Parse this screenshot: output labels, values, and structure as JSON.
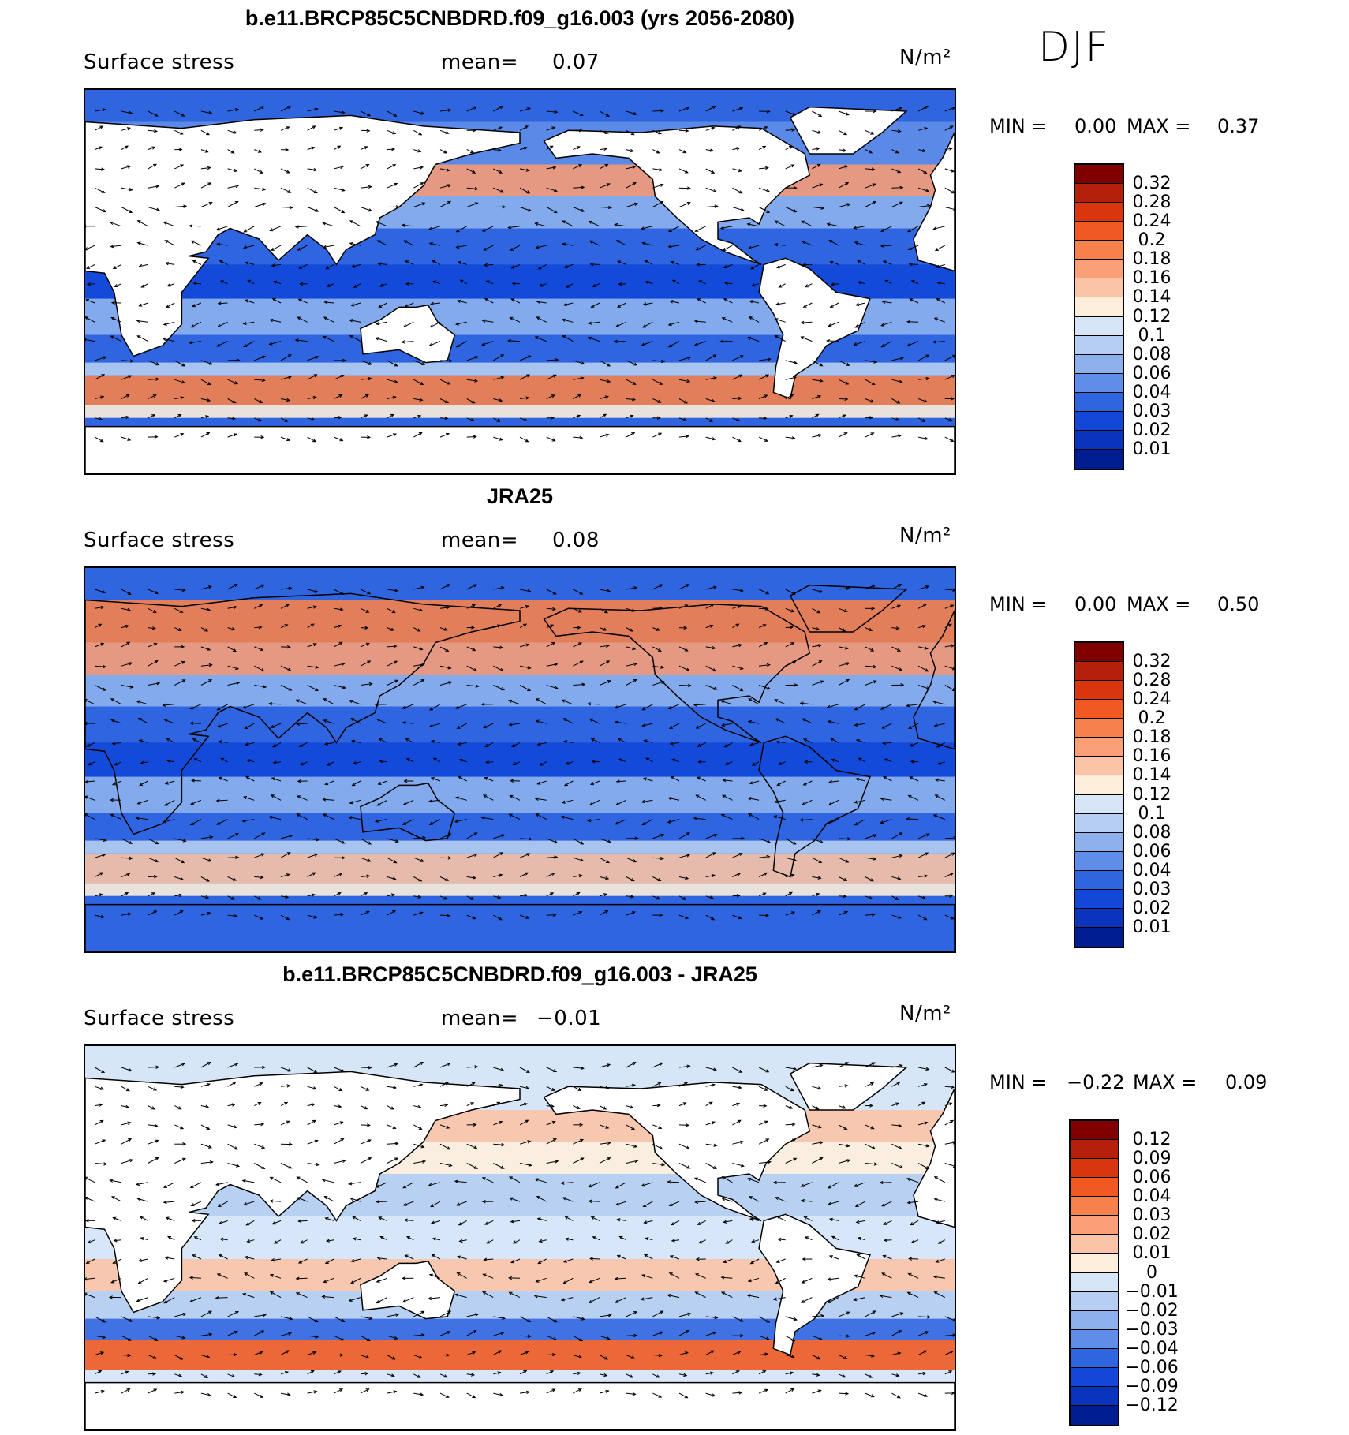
{
  "season": "DJF",
  "panels": [
    {
      "title": "b.e11.BRCP85C5CNBDRD.f09_g16.003 (yrs 2056-2080)",
      "left_label": "Surface stress",
      "mean_label": "mean=",
      "mean_value": "0.07",
      "units": "N/m²",
      "min_label": "MIN =",
      "min_value": "0.00",
      "max_label": "MAX =",
      "max_value": "0.37",
      "colorbar_labels": [
        "0.32",
        "0.28",
        "0.24",
        "0.2",
        "0.18",
        "0.16",
        "0.14",
        "0.12",
        "0.1",
        "0.08",
        "0.06",
        "0.04",
        "0.03",
        "0.02",
        "0.01"
      ],
      "colors": [
        "#800000",
        "#b5200c",
        "#d9350f",
        "#f05a22",
        "#f7814d",
        "#fa9f78",
        "#fbc4a6",
        "#fdeedc",
        "#d7e6f7",
        "#b5cef2",
        "#8db1ed",
        "#5f8de8",
        "#3065e0",
        "#1247d8",
        "#0a34be",
        "#001d8f"
      ]
    },
    {
      "title": "JRA25",
      "left_label": "Surface stress",
      "mean_label": "mean=",
      "mean_value": "0.08",
      "units": "N/m²",
      "min_label": "MIN =",
      "min_value": "0.00",
      "max_label": "MAX =",
      "max_value": "0.50",
      "colorbar_labels": [
        "0.32",
        "0.28",
        "0.24",
        "0.2",
        "0.18",
        "0.16",
        "0.14",
        "0.12",
        "0.1",
        "0.08",
        "0.06",
        "0.04",
        "0.03",
        "0.02",
        "0.01"
      ],
      "colors": [
        "#800000",
        "#b5200c",
        "#d9350f",
        "#f05a22",
        "#f7814d",
        "#fa9f78",
        "#fbc4a6",
        "#fdeedc",
        "#d7e6f7",
        "#b5cef2",
        "#8db1ed",
        "#5f8de8",
        "#3065e0",
        "#1247d8",
        "#0a34be",
        "#001d8f"
      ]
    },
    {
      "title": "b.e11.BRCP85C5CNBDRD.f09_g16.003 - JRA25",
      "left_label": "Surface stress",
      "mean_label": "mean=",
      "mean_value": "−0.01",
      "units": "N/m²",
      "min_label": "MIN =",
      "min_value": "−0.22",
      "max_label": "MAX =",
      "max_value": "0.09",
      "colorbar_labels": [
        "0.12",
        "0.09",
        "0.06",
        "0.04",
        "0.03",
        "0.02",
        "0.01",
        "0",
        "−0.01",
        "−0.02",
        "−0.03",
        "−0.04",
        "−0.06",
        "−0.09",
        "−0.12"
      ],
      "colors": [
        "#800000",
        "#b5200c",
        "#d9350f",
        "#f05a22",
        "#f7814d",
        "#fa9f78",
        "#fbc4a6",
        "#fdeedc",
        "#d7e6f7",
        "#b5cef2",
        "#8db1ed",
        "#5f8de8",
        "#3065e0",
        "#1247d8",
        "#0a34be",
        "#001d8f"
      ]
    }
  ]
}
